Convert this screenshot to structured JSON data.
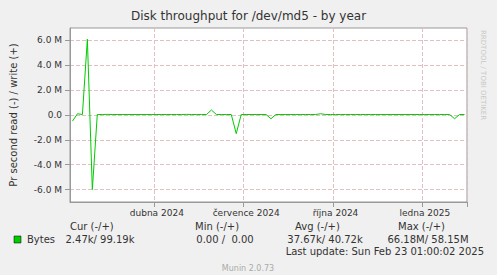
{
  "chart_data": {
    "type": "line",
    "title": "Disk throughput for /dev/md5 - by year",
    "y_label": "Pr second read (-) / write (+)",
    "categories": [
      null,
      null,
      null,
      null,
      null,
      null,
      null,
      null,
      null,
      null,
      null,
      null,
      null,
      null,
      null,
      null,
      null,
      "dubna 2024",
      null,
      null,
      null,
      null,
      null,
      null,
      null,
      null,
      null,
      null,
      null,
      null,
      null,
      null,
      null,
      null,
      null,
      "července 2024",
      null,
      null,
      null,
      null,
      null,
      null,
      null,
      null,
      null,
      null,
      null,
      null,
      null,
      null,
      null,
      null,
      null,
      "října 2024",
      null,
      null,
      null,
      null,
      null,
      null,
      null,
      null,
      null,
      null,
      null,
      null,
      null,
      null,
      null,
      null,
      null,
      "ledna 2025",
      null,
      null,
      null,
      null,
      null,
      null,
      null,
      null
    ],
    "series": [
      {
        "name": "Bytes",
        "color": "#00cc00",
        "values": [
          -0.5,
          0.1,
          0.04,
          6.1,
          -6.0,
          0.04,
          0.04,
          0.05,
          0.04,
          0.04,
          0.04,
          0.04,
          0.04,
          0.04,
          0.04,
          0.04,
          0.04,
          0.04,
          0.04,
          0.04,
          0.04,
          0.04,
          0.04,
          0.05,
          0.04,
          0.04,
          0.04,
          0.04,
          0.4,
          0.04,
          0.04,
          0.04,
          0.04,
          -1.5,
          0.04,
          0.04,
          0.04,
          0.04,
          0.04,
          0.04,
          -0.3,
          0.04,
          0.04,
          0.04,
          0.04,
          0.04,
          0.04,
          0.04,
          0.04,
          0.04,
          0.1,
          0.04,
          0.04,
          0.04,
          0.04,
          0.04,
          0.04,
          0.04,
          0.04,
          0.04,
          0.04,
          0.04,
          0.04,
          0.04,
          0.04,
          0.04,
          0.04,
          0.04,
          0.04,
          0.04,
          0.04,
          0.04,
          0.04,
          0.04,
          0.04,
          0.04,
          0.04,
          -0.3,
          0.04,
          0.04
        ]
      }
    ],
    "ylim": [
      -7,
      7
    ],
    "yticks": [
      {
        "value": -6,
        "label": "-6.0 M"
      },
      {
        "value": -4,
        "label": "-4.0 M"
      },
      {
        "value": -2,
        "label": "-2.0 M"
      },
      {
        "value": 0,
        "label": "0.0"
      },
      {
        "value": 2,
        "label": "2.0 M"
      },
      {
        "value": 4,
        "label": "4.0 M"
      },
      {
        "value": 6,
        "label": "6.0 M"
      }
    ],
    "grid": true,
    "stats": {
      "columns": [
        "Cur (-/+)",
        "Min (-/+)",
        "Avg (-/+)",
        "Max (-/+)"
      ],
      "rows": [
        {
          "name": "Bytes",
          "values": [
            "2.47k/ 99.19k",
            "0.00 /  0.00",
            "37.67k/ 40.72k",
            "66.18M/ 58.15M"
          ]
        }
      ]
    },
    "footer": "Last update: Sun Feb 23 01:00:02 2025",
    "credit": "Munin 2.0.73",
    "watermark": "RRDTOOL / TOBI OETIKER"
  }
}
